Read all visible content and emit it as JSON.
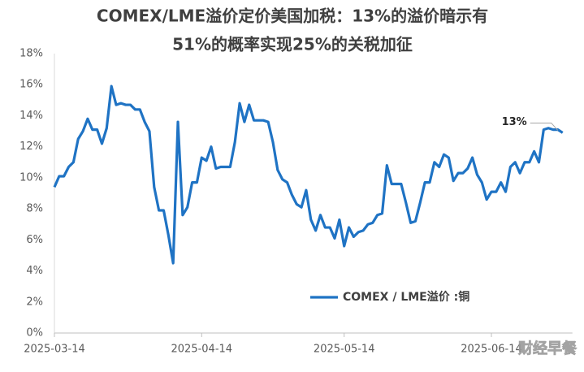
{
  "chart_data": {
    "type": "line",
    "title": [
      "COMEX/LME溢价定价美国加税：13%的溢价暗示有",
      "51%的概率实现25%的关税加征"
    ],
    "x": [
      "2025-03-14",
      "2025-03-15",
      "2025-03-16",
      "2025-03-17",
      "2025-03-18",
      "2025-03-19",
      "2025-03-20",
      "2025-03-21",
      "2025-03-22",
      "2025-03-23",
      "2025-03-24",
      "2025-03-25",
      "2025-03-26",
      "2025-03-27",
      "2025-03-28",
      "2025-03-29",
      "2025-03-30",
      "2025-03-31",
      "2025-04-01",
      "2025-04-02",
      "2025-04-03",
      "2025-04-04",
      "2025-04-05",
      "2025-04-06",
      "2025-04-07",
      "2025-04-08",
      "2025-04-09",
      "2025-04-10",
      "2025-04-11",
      "2025-04-12",
      "2025-04-13",
      "2025-04-14",
      "2025-04-15",
      "2025-04-16",
      "2025-04-17",
      "2025-04-18",
      "2025-04-19",
      "2025-04-20",
      "2025-04-21",
      "2025-04-22",
      "2025-04-23",
      "2025-04-24",
      "2025-04-25",
      "2025-04-26",
      "2025-04-27",
      "2025-04-28",
      "2025-04-29",
      "2025-04-30",
      "2025-05-01",
      "2025-05-02",
      "2025-05-03",
      "2025-05-04",
      "2025-05-05",
      "2025-05-06",
      "2025-05-07",
      "2025-05-08",
      "2025-05-09",
      "2025-05-10",
      "2025-05-11",
      "2025-05-12",
      "2025-05-13",
      "2025-05-14",
      "2025-05-15",
      "2025-05-16",
      "2025-05-17",
      "2025-05-18",
      "2025-05-19",
      "2025-05-20",
      "2025-05-21",
      "2025-05-22",
      "2025-05-23",
      "2025-05-24",
      "2025-05-25",
      "2025-05-26",
      "2025-05-27",
      "2025-05-28",
      "2025-05-29",
      "2025-05-30",
      "2025-05-31",
      "2025-06-01",
      "2025-06-02",
      "2025-06-03",
      "2025-06-04",
      "2025-06-05",
      "2025-06-06",
      "2025-06-07",
      "2025-06-08",
      "2025-06-09",
      "2025-06-10",
      "2025-06-11",
      "2025-06-12",
      "2025-06-13",
      "2025-06-14",
      "2025-06-15",
      "2025-06-16",
      "2025-06-17",
      "2025-06-18",
      "2025-06-19",
      "2025-06-20",
      "2025-06-21",
      "2025-06-22",
      "2025-06-23",
      "2025-06-24",
      "2025-06-25",
      "2025-06-26",
      "2025-06-27",
      "2025-06-28",
      "2025-06-29"
    ],
    "series": [
      {
        "name": "COMEX / LME溢价 :铜",
        "color": "#1f73c4",
        "values": [
          9.4,
          10.1,
          10.1,
          10.7,
          11.0,
          12.5,
          13.0,
          13.8,
          13.1,
          13.1,
          12.2,
          13.2,
          15.9,
          14.7,
          14.8,
          14.7,
          14.7,
          14.4,
          14.4,
          13.6,
          13.0,
          9.4,
          7.9,
          7.9,
          6.3,
          4.5,
          13.6,
          7.6,
          8.1,
          9.7,
          9.7,
          11.3,
          11.1,
          12.0,
          10.6,
          10.7,
          10.7,
          10.7,
          12.3,
          14.8,
          13.6,
          14.7,
          13.7,
          13.7,
          13.7,
          13.6,
          12.3,
          10.5,
          9.9,
          9.7,
          8.9,
          8.3,
          8.1,
          9.2,
          7.3,
          6.6,
          7.6,
          6.8,
          6.8,
          6.1,
          7.3,
          5.6,
          6.8,
          6.2,
          6.5,
          6.6,
          7.0,
          7.1,
          7.6,
          7.7,
          10.8,
          9.6,
          9.6,
          9.6,
          8.4,
          7.1,
          7.2,
          8.4,
          9.7,
          9.7,
          11.0,
          10.7,
          11.5,
          11.3,
          9.8,
          10.3,
          10.3,
          10.6,
          11.3,
          10.2,
          9.7,
          8.6,
          9.1,
          9.1,
          9.7,
          9.1,
          10.7,
          11.0,
          10.3,
          11.0,
          11.0,
          11.7,
          11.0,
          13.1,
          13.2,
          13.1,
          13.1,
          12.9
        ]
      }
    ],
    "annotation": "13%",
    "watermark": "财经早餐",
    "xticks": [
      "2025-03-14",
      "2025-04-14",
      "2025-05-14",
      "2025-06-14"
    ],
    "ylim": [
      0,
      18
    ],
    "yticks": [
      {
        "value": 0,
        "label": "0%"
      },
      {
        "value": 2,
        "label": "2%"
      },
      {
        "value": 4,
        "label": "4%"
      },
      {
        "value": 6,
        "label": "6%"
      },
      {
        "value": 8,
        "label": "8%"
      },
      {
        "value": 10,
        "label": "10%"
      },
      {
        "value": 12,
        "label": "12%"
      },
      {
        "value": 14,
        "label": "14%"
      },
      {
        "value": 16,
        "label": "16%"
      },
      {
        "value": 18,
        "label": "18%"
      }
    ],
    "grid": false,
    "legend": "lower right"
  }
}
